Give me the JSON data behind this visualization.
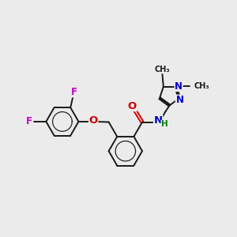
{
  "bg_color": "#ebebeb",
  "bond_color": "#1a1a1a",
  "bond_lw": 1.4,
  "atom_colors": {
    "F": "#cc00cc",
    "O": "#cc0000",
    "N": "#0000cc",
    "H": "#008000",
    "C": "#1a1a1a"
  },
  "font_size": 8.5,
  "fig_size": [
    3.0,
    3.0
  ],
  "dpi": 100
}
